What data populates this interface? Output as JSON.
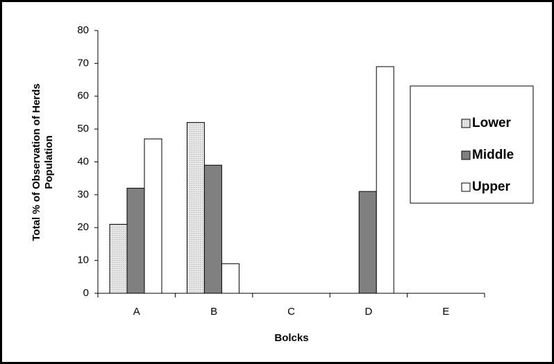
{
  "chart_data": {
    "type": "bar",
    "xlabel": "Bolcks",
    "ylabel": [
      "Total % of Observation of Herds",
      "Population"
    ],
    "categories": [
      "A",
      "B",
      "C",
      "D",
      "E"
    ],
    "series": [
      {
        "name": "Lower",
        "color": "#d4d4d4",
        "values": [
          21,
          52,
          0,
          0,
          0
        ]
      },
      {
        "name": "Middle",
        "color": "#808080",
        "values": [
          32,
          39,
          0,
          31,
          0
        ]
      },
      {
        "name": "Upper",
        "color": "#ffffff",
        "values": [
          47,
          9,
          0,
          69,
          0
        ]
      }
    ],
    "ylim": [
      0,
      80
    ],
    "yticks": [
      0,
      10,
      20,
      30,
      40,
      50,
      60,
      70,
      80
    ],
    "grid": false,
    "legend": "right"
  }
}
